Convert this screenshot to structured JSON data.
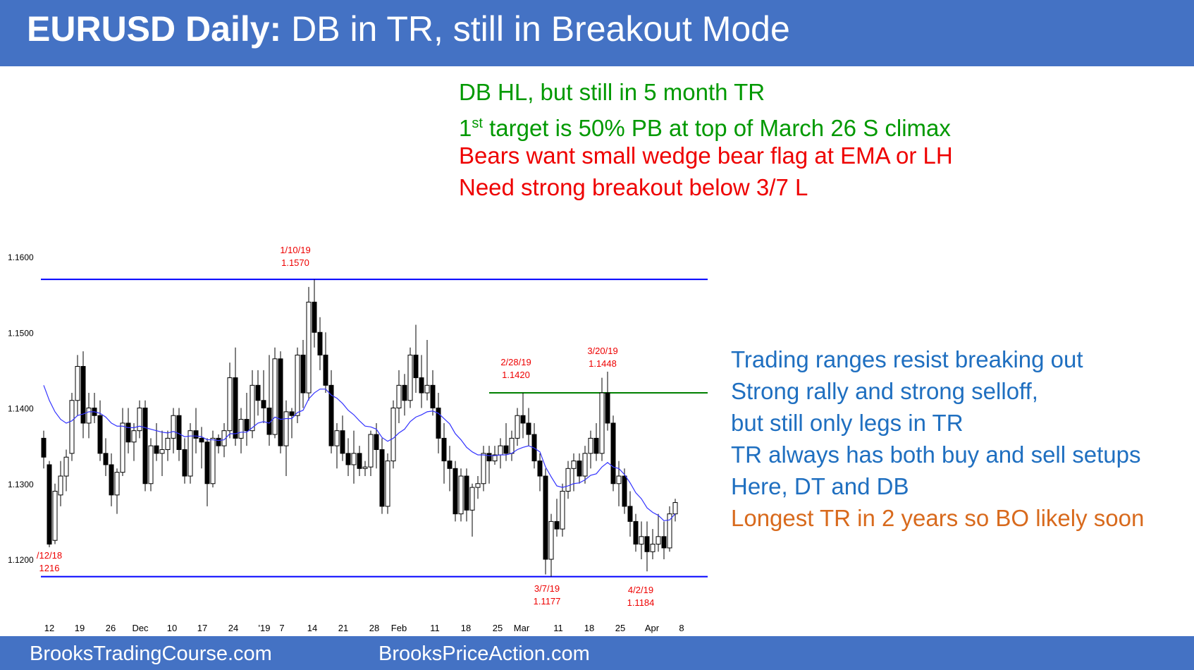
{
  "header": {
    "title_bold": "EURUSD Daily:",
    "title_rest": "DB in TR, still in Breakout Mode"
  },
  "footer": {
    "left_link": "BrooksTradingCourse.com",
    "right_link": "BrooksPriceAction.com"
  },
  "top_notes": [
    {
      "text": "DB HL, but still in 5 month TR",
      "color": "#009900"
    },
    {
      "pre": "1",
      "sup": "st",
      "post": " target is 50% PB at top of March 26 S climax",
      "color": "#009900"
    },
    {
      "text": "Bears want small wedge bear flag at EMA or LH",
      "color": "#ee0000"
    },
    {
      "text": "Need strong breakout below 3/7 L",
      "color": "#ee0000"
    }
  ],
  "side_notes": [
    {
      "text": "Trading ranges resist breaking out",
      "color": "#1f6fc0"
    },
    {
      "text": "Strong rally and strong selloff,",
      "color": "#1f6fc0"
    },
    {
      "text": "but still only legs in TR",
      "color": "#1f6fc0"
    },
    {
      "text": "TR always has both buy and sell setups",
      "color": "#1f6fc0"
    },
    {
      "text": "Here, DT and DB",
      "color": "#1f6fc0"
    },
    {
      "text": "Longest TR in 2 years so BO likely soon",
      "color": "#d86a1d"
    }
  ],
  "colors": {
    "header_bg": "#4472c4",
    "range_lines": "#0000ff",
    "resistance_line": "#008000",
    "ema_line": "#3333ff",
    "annotation": "#ee0000"
  },
  "chart_data": {
    "type": "candlestick",
    "title": "",
    "ylim": [
      1.115,
      1.162
    ],
    "y_ticks": [
      "1.1600",
      "1.1500",
      "1.1400",
      "1.1300",
      "1.1200"
    ],
    "x_ticks": [
      "12",
      "19",
      "26",
      "Dec",
      "10",
      "17",
      "24",
      "'19",
      "7",
      "14",
      "21",
      "28",
      "Feb",
      "11",
      "18",
      "25",
      "Mar",
      "11",
      "18",
      "25",
      "Apr",
      "8"
    ],
    "grid": false,
    "candles": [
      {
        "o": 1.136,
        "h": 1.137,
        "l": 1.132,
        "c": 1.1335
      },
      {
        "o": 1.1325,
        "h": 1.133,
        "l": 1.1216,
        "c": 1.122
      },
      {
        "o": 1.1225,
        "h": 1.13,
        "l": 1.122,
        "c": 1.129
      },
      {
        "o": 1.1285,
        "h": 1.133,
        "l": 1.127,
        "c": 1.131
      },
      {
        "o": 1.131,
        "h": 1.1345,
        "l": 1.129,
        "c": 1.1335
      },
      {
        "o": 1.134,
        "h": 1.142,
        "l": 1.133,
        "c": 1.141
      },
      {
        "o": 1.141,
        "h": 1.147,
        "l": 1.139,
        "c": 1.1455
      },
      {
        "o": 1.1455,
        "h": 1.1475,
        "l": 1.136,
        "c": 1.138
      },
      {
        "o": 1.138,
        "h": 1.142,
        "l": 1.136,
        "c": 1.14
      },
      {
        "o": 1.14,
        "h": 1.142,
        "l": 1.138,
        "c": 1.139
      },
      {
        "o": 1.139,
        "h": 1.141,
        "l": 1.133,
        "c": 1.134
      },
      {
        "o": 1.134,
        "h": 1.136,
        "l": 1.131,
        "c": 1.1325
      },
      {
        "o": 1.1325,
        "h": 1.134,
        "l": 1.127,
        "c": 1.1285
      },
      {
        "o": 1.1285,
        "h": 1.132,
        "l": 1.126,
        "c": 1.1315
      },
      {
        "o": 1.1315,
        "h": 1.14,
        "l": 1.131,
        "c": 1.138
      },
      {
        "o": 1.138,
        "h": 1.14,
        "l": 1.134,
        "c": 1.1355
      },
      {
        "o": 1.1355,
        "h": 1.138,
        "l": 1.133,
        "c": 1.137
      },
      {
        "o": 1.137,
        "h": 1.141,
        "l": 1.136,
        "c": 1.14
      },
      {
        "o": 1.14,
        "h": 1.141,
        "l": 1.129,
        "c": 1.13
      },
      {
        "o": 1.13,
        "h": 1.136,
        "l": 1.129,
        "c": 1.135
      },
      {
        "o": 1.135,
        "h": 1.138,
        "l": 1.133,
        "c": 1.134
      },
      {
        "o": 1.134,
        "h": 1.137,
        "l": 1.131,
        "c": 1.1345
      },
      {
        "o": 1.1345,
        "h": 1.137,
        "l": 1.133,
        "c": 1.136
      },
      {
        "o": 1.136,
        "h": 1.14,
        "l": 1.134,
        "c": 1.139
      },
      {
        "o": 1.139,
        "h": 1.14,
        "l": 1.133,
        "c": 1.1345
      },
      {
        "o": 1.1345,
        "h": 1.136,
        "l": 1.13,
        "c": 1.131
      },
      {
        "o": 1.131,
        "h": 1.138,
        "l": 1.13,
        "c": 1.137
      },
      {
        "o": 1.137,
        "h": 1.14,
        "l": 1.134,
        "c": 1.136
      },
      {
        "o": 1.136,
        "h": 1.1375,
        "l": 1.132,
        "c": 1.1355
      },
      {
        "o": 1.1355,
        "h": 1.136,
        "l": 1.127,
        "c": 1.13
      },
      {
        "o": 1.13,
        "h": 1.137,
        "l": 1.1295,
        "c": 1.136
      },
      {
        "o": 1.136,
        "h": 1.1365,
        "l": 1.134,
        "c": 1.135
      },
      {
        "o": 1.135,
        "h": 1.138,
        "l": 1.1335,
        "c": 1.137
      },
      {
        "o": 1.137,
        "h": 1.146,
        "l": 1.136,
        "c": 1.144
      },
      {
        "o": 1.144,
        "h": 1.148,
        "l": 1.135,
        "c": 1.136
      },
      {
        "o": 1.136,
        "h": 1.14,
        "l": 1.134,
        "c": 1.1385
      },
      {
        "o": 1.1385,
        "h": 1.142,
        "l": 1.135,
        "c": 1.137
      },
      {
        "o": 1.137,
        "h": 1.145,
        "l": 1.136,
        "c": 1.143
      },
      {
        "o": 1.143,
        "h": 1.145,
        "l": 1.139,
        "c": 1.141
      },
      {
        "o": 1.141,
        "h": 1.145,
        "l": 1.138,
        "c": 1.14
      },
      {
        "o": 1.14,
        "h": 1.147,
        "l": 1.135,
        "c": 1.1365
      },
      {
        "o": 1.1365,
        "h": 1.148,
        "l": 1.136,
        "c": 1.1465
      },
      {
        "o": 1.1465,
        "h": 1.1475,
        "l": 1.134,
        "c": 1.135
      },
      {
        "o": 1.135,
        "h": 1.141,
        "l": 1.131,
        "c": 1.1395
      },
      {
        "o": 1.1395,
        "h": 1.14,
        "l": 1.136,
        "c": 1.139
      },
      {
        "o": 1.139,
        "h": 1.148,
        "l": 1.138,
        "c": 1.147
      },
      {
        "o": 1.147,
        "h": 1.149,
        "l": 1.14,
        "c": 1.142
      },
      {
        "o": 1.142,
        "h": 1.156,
        "l": 1.141,
        "c": 1.154
      },
      {
        "o": 1.154,
        "h": 1.157,
        "l": 1.148,
        "c": 1.15
      },
      {
        "o": 1.15,
        "h": 1.152,
        "l": 1.145,
        "c": 1.147
      },
      {
        "o": 1.147,
        "h": 1.15,
        "l": 1.142,
        "c": 1.143
      },
      {
        "o": 1.143,
        "h": 1.145,
        "l": 1.134,
        "c": 1.135
      },
      {
        "o": 1.135,
        "h": 1.138,
        "l": 1.132,
        "c": 1.137
      },
      {
        "o": 1.137,
        "h": 1.139,
        "l": 1.133,
        "c": 1.134
      },
      {
        "o": 1.134,
        "h": 1.136,
        "l": 1.131,
        "c": 1.1325
      },
      {
        "o": 1.1325,
        "h": 1.137,
        "l": 1.13,
        "c": 1.134
      },
      {
        "o": 1.134,
        "h": 1.135,
        "l": 1.131,
        "c": 1.132
      },
      {
        "o": 1.132,
        "h": 1.133,
        "l": 1.131,
        "c": 1.1322
      },
      {
        "o": 1.1322,
        "h": 1.137,
        "l": 1.131,
        "c": 1.1365
      },
      {
        "o": 1.1365,
        "h": 1.138,
        "l": 1.132,
        "c": 1.1345
      },
      {
        "o": 1.1345,
        "h": 1.136,
        "l": 1.126,
        "c": 1.127
      },
      {
        "o": 1.127,
        "h": 1.134,
        "l": 1.126,
        "c": 1.133
      },
      {
        "o": 1.133,
        "h": 1.141,
        "l": 1.132,
        "c": 1.14
      },
      {
        "o": 1.14,
        "h": 1.145,
        "l": 1.138,
        "c": 1.143
      },
      {
        "o": 1.143,
        "h": 1.1445,
        "l": 1.139,
        "c": 1.141
      },
      {
        "o": 1.141,
        "h": 1.148,
        "l": 1.14,
        "c": 1.147
      },
      {
        "o": 1.147,
        "h": 1.151,
        "l": 1.142,
        "c": 1.144
      },
      {
        "o": 1.144,
        "h": 1.147,
        "l": 1.14,
        "c": 1.142
      },
      {
        "o": 1.142,
        "h": 1.149,
        "l": 1.141,
        "c": 1.143
      },
      {
        "o": 1.143,
        "h": 1.145,
        "l": 1.139,
        "c": 1.14
      },
      {
        "o": 1.14,
        "h": 1.142,
        "l": 1.134,
        "c": 1.136
      },
      {
        "o": 1.136,
        "h": 1.138,
        "l": 1.13,
        "c": 1.133
      },
      {
        "o": 1.133,
        "h": 1.135,
        "l": 1.129,
        "c": 1.132
      },
      {
        "o": 1.132,
        "h": 1.133,
        "l": 1.125,
        "c": 1.126
      },
      {
        "o": 1.126,
        "h": 1.132,
        "l": 1.125,
        "c": 1.131
      },
      {
        "o": 1.131,
        "h": 1.132,
        "l": 1.125,
        "c": 1.1265
      },
      {
        "o": 1.1265,
        "h": 1.13,
        "l": 1.123,
        "c": 1.1295
      },
      {
        "o": 1.1295,
        "h": 1.131,
        "l": 1.128,
        "c": 1.13
      },
      {
        "o": 1.13,
        "h": 1.135,
        "l": 1.129,
        "c": 1.134
      },
      {
        "o": 1.134,
        "h": 1.135,
        "l": 1.13,
        "c": 1.133
      },
      {
        "o": 1.133,
        "h": 1.135,
        "l": 1.1325,
        "c": 1.1338
      },
      {
        "o": 1.1338,
        "h": 1.136,
        "l": 1.132,
        "c": 1.135
      },
      {
        "o": 1.135,
        "h": 1.138,
        "l": 1.133,
        "c": 1.134
      },
      {
        "o": 1.134,
        "h": 1.137,
        "l": 1.133,
        "c": 1.136
      },
      {
        "o": 1.136,
        "h": 1.14,
        "l": 1.135,
        "c": 1.139
      },
      {
        "o": 1.139,
        "h": 1.142,
        "l": 1.136,
        "c": 1.138
      },
      {
        "o": 1.138,
        "h": 1.14,
        "l": 1.135,
        "c": 1.1365
      },
      {
        "o": 1.1365,
        "h": 1.138,
        "l": 1.132,
        "c": 1.133
      },
      {
        "o": 1.133,
        "h": 1.134,
        "l": 1.129,
        "c": 1.131
      },
      {
        "o": 1.131,
        "h": 1.132,
        "l": 1.118,
        "c": 1.12
      },
      {
        "o": 1.12,
        "h": 1.126,
        "l": 1.1177,
        "c": 1.125
      },
      {
        "o": 1.125,
        "h": 1.128,
        "l": 1.123,
        "c": 1.124
      },
      {
        "o": 1.124,
        "h": 1.13,
        "l": 1.123,
        "c": 1.129
      },
      {
        "o": 1.129,
        "h": 1.133,
        "l": 1.128,
        "c": 1.132
      },
      {
        "o": 1.132,
        "h": 1.134,
        "l": 1.129,
        "c": 1.133
      },
      {
        "o": 1.133,
        "h": 1.134,
        "l": 1.13,
        "c": 1.131
      },
      {
        "o": 1.131,
        "h": 1.135,
        "l": 1.13,
        "c": 1.134
      },
      {
        "o": 1.134,
        "h": 1.137,
        "l": 1.132,
        "c": 1.136
      },
      {
        "o": 1.136,
        "h": 1.138,
        "l": 1.133,
        "c": 1.134
      },
      {
        "o": 1.134,
        "h": 1.144,
        "l": 1.133,
        "c": 1.142
      },
      {
        "o": 1.142,
        "h": 1.1448,
        "l": 1.137,
        "c": 1.138
      },
      {
        "o": 1.138,
        "h": 1.139,
        "l": 1.129,
        "c": 1.13
      },
      {
        "o": 1.13,
        "h": 1.133,
        "l": 1.127,
        "c": 1.131
      },
      {
        "o": 1.131,
        "h": 1.132,
        "l": 1.126,
        "c": 1.127
      },
      {
        "o": 1.127,
        "h": 1.129,
        "l": 1.123,
        "c": 1.125
      },
      {
        "o": 1.125,
        "h": 1.126,
        "l": 1.121,
        "c": 1.122
      },
      {
        "o": 1.122,
        "h": 1.125,
        "l": 1.12,
        "c": 1.123
      },
      {
        "o": 1.123,
        "h": 1.125,
        "l": 1.1184,
        "c": 1.121
      },
      {
        "o": 1.121,
        "h": 1.124,
        "l": 1.12,
        "c": 1.122
      },
      {
        "o": 1.122,
        "h": 1.126,
        "l": 1.121,
        "c": 1.123
      },
      {
        "o": 1.123,
        "h": 1.125,
        "l": 1.12,
        "c": 1.1215
      },
      {
        "o": 1.1215,
        "h": 1.127,
        "l": 1.121,
        "c": 1.126
      },
      {
        "o": 1.126,
        "h": 1.128,
        "l": 1.125,
        "c": 1.1275
      }
    ],
    "ema": [
      1.143,
      1.141,
      1.1395,
      1.1385,
      1.138,
      1.1383,
      1.139,
      1.1392,
      1.1395,
      1.1395,
      1.1393,
      1.1388,
      1.138,
      1.1376,
      1.1376,
      1.1374,
      1.1374,
      1.1376,
      1.1374,
      1.1372,
      1.137,
      1.1368,
      1.1367,
      1.1369,
      1.1366,
      1.1362,
      1.1363,
      1.1363,
      1.1362,
      1.1358,
      1.1358,
      1.1357,
      1.1358,
      1.1366,
      1.1366,
      1.1368,
      1.1368,
      1.1374,
      1.138,
      1.1382,
      1.138,
      1.1388,
      1.1385,
      1.1386,
      1.1386,
      1.1394,
      1.1397,
      1.1412,
      1.142,
      1.1425,
      1.1425,
      1.1417,
      1.1413,
      1.1406,
      1.1397,
      1.1391,
      1.1383,
      1.1376,
      1.1375,
      1.1372,
      1.1361,
      1.1356,
      1.136,
      1.1367,
      1.1372,
      1.1382,
      1.1388,
      1.1391,
      1.1395,
      1.1396,
      1.1393,
      1.1386,
      1.1379,
      1.1366,
      1.1358,
      1.1348,
      1.1342,
      1.1338,
      1.1338,
      1.1337,
      1.1337,
      1.1338,
      1.1338,
      1.134,
      1.1345,
      1.1348,
      1.135,
      1.1347,
      1.1342,
      1.1322,
      1.1309,
      1.1297,
      1.1295,
      1.1297,
      1.13,
      1.1301,
      1.1305,
      1.1311,
      1.1313,
      1.1322,
      1.1328,
      1.1322,
      1.132,
      1.1312,
      1.1301,
      1.1288,
      1.128,
      1.1268,
      1.1262,
      1.1258,
      1.1251,
      1.1252,
      1.126
    ],
    "lines": [
      {
        "name": "range_top",
        "y": 1.157
      },
      {
        "name": "range_bottom",
        "y": 1.1177
      },
      {
        "name": "resistance",
        "y": 1.142,
        "from_candle": 79
      }
    ],
    "annotations": [
      {
        "date": "1/10/19",
        "price": "1.1570"
      },
      {
        "date": "2/28/19",
        "price": "1.1420"
      },
      {
        "date": "3/20/19",
        "price": "1.1448"
      },
      {
        "date": "/12/18",
        "price": "1216"
      },
      {
        "date": "3/7/19",
        "price": "1.1177"
      },
      {
        "date": "4/2/19",
        "price": "1.1184"
      }
    ]
  }
}
